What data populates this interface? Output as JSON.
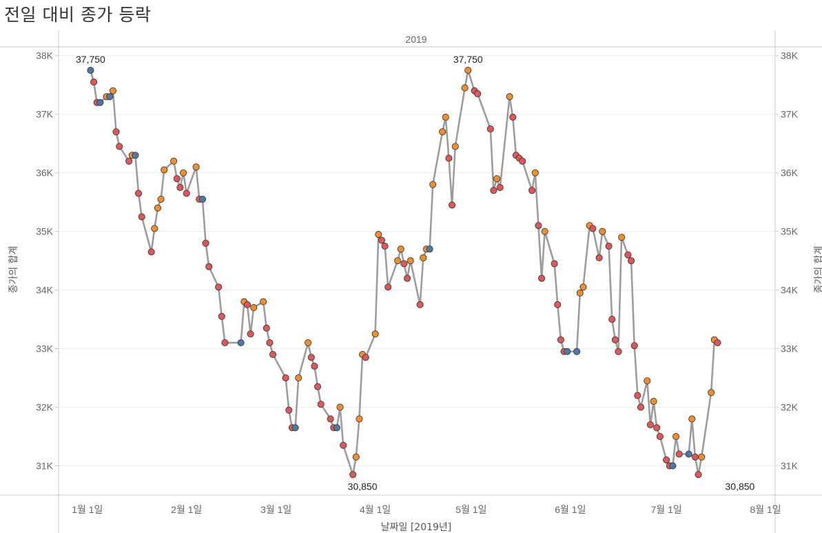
{
  "title": "전일 대비 종가 등락",
  "colors": {
    "up": "#f28e2b",
    "down": "#e15759",
    "flat": "#4e79a7",
    "line": "#9c9c9c",
    "grid": "#ececec",
    "axis": "#c8c8c8"
  },
  "chart_data": {
    "type": "line",
    "panel_header": "2019",
    "xlabel": "날짜일 [2019년]",
    "ylabel": "종가의 합계",
    "ylabel_right": "종가의 합계",
    "x_range": [
      "2018-12-23",
      "2019-08-04"
    ],
    "ylim": [
      30500,
      38150
    ],
    "y_ticks": [
      31000,
      32000,
      33000,
      34000,
      35000,
      36000,
      37000,
      38000
    ],
    "y_tick_labels": [
      "31K",
      "32K",
      "33K",
      "34K",
      "35K",
      "36K",
      "37K",
      "38K"
    ],
    "x_ticks": [
      "2019-01-01",
      "2019-02-01",
      "2019-03-01",
      "2019-04-01",
      "2019-05-01",
      "2019-06-01",
      "2019-07-01",
      "2019-08-01"
    ],
    "x_tick_labels": [
      "1월 1일",
      "2월 1일",
      "3월 1일",
      "4월 1일",
      "5월 1일",
      "6월 1일",
      "7월 1일",
      "8월 1일"
    ],
    "grid": "horizontal",
    "legend": "none",
    "point_color_rule": "up = close higher than previous day, down = lower, flat = unchanged",
    "annotations": [
      {
        "date": "2019-01-02",
        "value": 37750,
        "label": "37,750"
      },
      {
        "date": "2019-04-30",
        "value": 37750,
        "label": "37,750"
      },
      {
        "date": "2019-03-28",
        "value": 30850,
        "label": "30,850"
      },
      {
        "date": "2019-07-24",
        "value": 30850,
        "label": "30,850"
      }
    ],
    "points": [
      {
        "date": "2019-01-02",
        "value": 37750,
        "change": "flat"
      },
      {
        "date": "2019-01-03",
        "value": 37550,
        "change": "down"
      },
      {
        "date": "2019-01-04",
        "value": 37200,
        "change": "down"
      },
      {
        "date": "2019-01-05",
        "value": 37200,
        "change": "flat"
      },
      {
        "date": "2019-01-07",
        "value": 37300,
        "change": "up"
      },
      {
        "date": "2019-01-08",
        "value": 37300,
        "change": "flat"
      },
      {
        "date": "2019-01-09",
        "value": 37400,
        "change": "up"
      },
      {
        "date": "2019-01-10",
        "value": 36700,
        "change": "down"
      },
      {
        "date": "2019-01-11",
        "value": 36450,
        "change": "down"
      },
      {
        "date": "2019-01-14",
        "value": 36200,
        "change": "down"
      },
      {
        "date": "2019-01-15",
        "value": 36300,
        "change": "up"
      },
      {
        "date": "2019-01-16",
        "value": 36300,
        "change": "flat"
      },
      {
        "date": "2019-01-17",
        "value": 35650,
        "change": "down"
      },
      {
        "date": "2019-01-18",
        "value": 35250,
        "change": "down"
      },
      {
        "date": "2019-01-21",
        "value": 34650,
        "change": "down"
      },
      {
        "date": "2019-01-22",
        "value": 35050,
        "change": "up"
      },
      {
        "date": "2019-01-23",
        "value": 35400,
        "change": "up"
      },
      {
        "date": "2019-01-24",
        "value": 35550,
        "change": "up"
      },
      {
        "date": "2019-01-25",
        "value": 36050,
        "change": "up"
      },
      {
        "date": "2019-01-28",
        "value": 36200,
        "change": "up"
      },
      {
        "date": "2019-01-29",
        "value": 35900,
        "change": "down"
      },
      {
        "date": "2019-01-30",
        "value": 35750,
        "change": "down"
      },
      {
        "date": "2019-01-31",
        "value": 36000,
        "change": "up"
      },
      {
        "date": "2019-02-01",
        "value": 35650,
        "change": "down"
      },
      {
        "date": "2019-02-04",
        "value": 36100,
        "change": "up"
      },
      {
        "date": "2019-02-05",
        "value": 35550,
        "change": "down"
      },
      {
        "date": "2019-02-06",
        "value": 35550,
        "change": "flat"
      },
      {
        "date": "2019-02-07",
        "value": 34800,
        "change": "down"
      },
      {
        "date": "2019-02-08",
        "value": 34400,
        "change": "down"
      },
      {
        "date": "2019-02-11",
        "value": 34050,
        "change": "down"
      },
      {
        "date": "2019-02-12",
        "value": 33550,
        "change": "down"
      },
      {
        "date": "2019-02-13",
        "value": 33100,
        "change": "down"
      },
      {
        "date": "2019-02-18",
        "value": 33100,
        "change": "flat"
      },
      {
        "date": "2019-02-19",
        "value": 33800,
        "change": "up"
      },
      {
        "date": "2019-02-20",
        "value": 33750,
        "change": "down"
      },
      {
        "date": "2019-02-21",
        "value": 33250,
        "change": "down"
      },
      {
        "date": "2019-02-22",
        "value": 33700,
        "change": "up"
      },
      {
        "date": "2019-02-25",
        "value": 33800,
        "change": "up"
      },
      {
        "date": "2019-02-26",
        "value": 33350,
        "change": "down"
      },
      {
        "date": "2019-02-27",
        "value": 33100,
        "change": "down"
      },
      {
        "date": "2019-02-28",
        "value": 32900,
        "change": "down"
      },
      {
        "date": "2019-03-04",
        "value": 32500,
        "change": "down"
      },
      {
        "date": "2019-03-05",
        "value": 31950,
        "change": "down"
      },
      {
        "date": "2019-03-06",
        "value": 31650,
        "change": "down"
      },
      {
        "date": "2019-03-07",
        "value": 31650,
        "change": "flat"
      },
      {
        "date": "2019-03-08",
        "value": 32500,
        "change": "up"
      },
      {
        "date": "2019-03-11",
        "value": 33100,
        "change": "up"
      },
      {
        "date": "2019-03-12",
        "value": 32850,
        "change": "down"
      },
      {
        "date": "2019-03-13",
        "value": 32700,
        "change": "down"
      },
      {
        "date": "2019-03-14",
        "value": 32350,
        "change": "down"
      },
      {
        "date": "2019-03-15",
        "value": 32050,
        "change": "down"
      },
      {
        "date": "2019-03-18",
        "value": 31800,
        "change": "down"
      },
      {
        "date": "2019-03-19",
        "value": 31650,
        "change": "down"
      },
      {
        "date": "2019-03-20",
        "value": 31650,
        "change": "flat"
      },
      {
        "date": "2019-03-21",
        "value": 32000,
        "change": "up"
      },
      {
        "date": "2019-03-22",
        "value": 31350,
        "change": "down"
      },
      {
        "date": "2019-03-25",
        "value": 30850,
        "change": "down"
      },
      {
        "date": "2019-03-26",
        "value": 31150,
        "change": "up"
      },
      {
        "date": "2019-03-27",
        "value": 31800,
        "change": "up"
      },
      {
        "date": "2019-03-28",
        "value": 32900,
        "change": "up"
      },
      {
        "date": "2019-03-29",
        "value": 32850,
        "change": "down"
      },
      {
        "date": "2019-04-01",
        "value": 33250,
        "change": "up"
      },
      {
        "date": "2019-04-02",
        "value": 34950,
        "change": "up"
      },
      {
        "date": "2019-04-03",
        "value": 34850,
        "change": "down"
      },
      {
        "date": "2019-04-04",
        "value": 34750,
        "change": "down"
      },
      {
        "date": "2019-04-05",
        "value": 34050,
        "change": "down"
      },
      {
        "date": "2019-04-08",
        "value": 34500,
        "change": "up"
      },
      {
        "date": "2019-04-09",
        "value": 34700,
        "change": "up"
      },
      {
        "date": "2019-04-10",
        "value": 34450,
        "change": "down"
      },
      {
        "date": "2019-04-11",
        "value": 34200,
        "change": "down"
      },
      {
        "date": "2019-04-12",
        "value": 34500,
        "change": "up"
      },
      {
        "date": "2019-04-15",
        "value": 33750,
        "change": "down"
      },
      {
        "date": "2019-04-16",
        "value": 34550,
        "change": "up"
      },
      {
        "date": "2019-04-17",
        "value": 34700,
        "change": "up"
      },
      {
        "date": "2019-04-18",
        "value": 34700,
        "change": "flat"
      },
      {
        "date": "2019-04-19",
        "value": 35800,
        "change": "up"
      },
      {
        "date": "2019-04-22",
        "value": 36700,
        "change": "up"
      },
      {
        "date": "2019-04-23",
        "value": 36950,
        "change": "up"
      },
      {
        "date": "2019-04-24",
        "value": 36250,
        "change": "down"
      },
      {
        "date": "2019-04-25",
        "value": 35450,
        "change": "down"
      },
      {
        "date": "2019-04-26",
        "value": 36450,
        "change": "up"
      },
      {
        "date": "2019-04-29",
        "value": 37450,
        "change": "up"
      },
      {
        "date": "2019-04-30",
        "value": 37750,
        "change": "up"
      },
      {
        "date": "2019-05-02",
        "value": 37400,
        "change": "down"
      },
      {
        "date": "2019-05-03",
        "value": 37350,
        "change": "down"
      },
      {
        "date": "2019-05-07",
        "value": 36750,
        "change": "down"
      },
      {
        "date": "2019-05-08",
        "value": 35700,
        "change": "down"
      },
      {
        "date": "2019-05-09",
        "value": 35900,
        "change": "up"
      },
      {
        "date": "2019-05-10",
        "value": 35750,
        "change": "down"
      },
      {
        "date": "2019-05-13",
        "value": 37300,
        "change": "up"
      },
      {
        "date": "2019-05-14",
        "value": 36950,
        "change": "down"
      },
      {
        "date": "2019-05-15",
        "value": 36300,
        "change": "down"
      },
      {
        "date": "2019-05-16",
        "value": 36250,
        "change": "down"
      },
      {
        "date": "2019-05-17",
        "value": 36200,
        "change": "down"
      },
      {
        "date": "2019-05-20",
        "value": 35700,
        "change": "down"
      },
      {
        "date": "2019-05-21",
        "value": 36000,
        "change": "up"
      },
      {
        "date": "2019-05-22",
        "value": 35100,
        "change": "down"
      },
      {
        "date": "2019-05-23",
        "value": 34200,
        "change": "down"
      },
      {
        "date": "2019-05-24",
        "value": 35000,
        "change": "up"
      },
      {
        "date": "2019-05-27",
        "value": 34450,
        "change": "down"
      },
      {
        "date": "2019-05-28",
        "value": 33750,
        "change": "down"
      },
      {
        "date": "2019-05-29",
        "value": 33150,
        "change": "down"
      },
      {
        "date": "2019-05-30",
        "value": 32950,
        "change": "down"
      },
      {
        "date": "2019-05-31",
        "value": 32950,
        "change": "flat"
      },
      {
        "date": "2019-06-03",
        "value": 32950,
        "change": "flat"
      },
      {
        "date": "2019-06-04",
        "value": 33950,
        "change": "up"
      },
      {
        "date": "2019-06-05",
        "value": 34050,
        "change": "up"
      },
      {
        "date": "2019-06-07",
        "value": 35100,
        "change": "up"
      },
      {
        "date": "2019-06-08",
        "value": 35050,
        "change": "down"
      },
      {
        "date": "2019-06-10",
        "value": 34550,
        "change": "down"
      },
      {
        "date": "2019-06-11",
        "value": 35000,
        "change": "up"
      },
      {
        "date": "2019-06-13",
        "value": 34750,
        "change": "down"
      },
      {
        "date": "2019-06-14",
        "value": 33500,
        "change": "down"
      },
      {
        "date": "2019-06-15",
        "value": 33150,
        "change": "down"
      },
      {
        "date": "2019-06-16",
        "value": 32950,
        "change": "down"
      },
      {
        "date": "2019-06-17",
        "value": 34900,
        "change": "up"
      },
      {
        "date": "2019-06-19",
        "value": 34600,
        "change": "down"
      },
      {
        "date": "2019-06-20",
        "value": 34500,
        "change": "down"
      },
      {
        "date": "2019-06-21",
        "value": 33050,
        "change": "down"
      },
      {
        "date": "2019-06-22",
        "value": 32200,
        "change": "down"
      },
      {
        "date": "2019-06-23",
        "value": 32000,
        "change": "down"
      },
      {
        "date": "2019-06-25",
        "value": 32450,
        "change": "up"
      },
      {
        "date": "2019-06-26",
        "value": 31700,
        "change": "down"
      },
      {
        "date": "2019-06-27",
        "value": 32100,
        "change": "up"
      },
      {
        "date": "2019-06-28",
        "value": 31650,
        "change": "down"
      },
      {
        "date": "2019-06-29",
        "value": 31500,
        "change": "down"
      },
      {
        "date": "2019-07-01",
        "value": 31100,
        "change": "down"
      },
      {
        "date": "2019-07-02",
        "value": 31000,
        "change": "down"
      },
      {
        "date": "2019-07-03",
        "value": 31000,
        "change": "flat"
      },
      {
        "date": "2019-07-04",
        "value": 31500,
        "change": "up"
      },
      {
        "date": "2019-07-05",
        "value": 31200,
        "change": "down"
      },
      {
        "date": "2019-07-08",
        "value": 31200,
        "change": "flat"
      },
      {
        "date": "2019-07-09",
        "value": 31800,
        "change": "up"
      },
      {
        "date": "2019-07-10",
        "value": 31150,
        "change": "down"
      },
      {
        "date": "2019-07-11",
        "value": 30850,
        "change": "down"
      },
      {
        "date": "2019-07-12",
        "value": 31150,
        "change": "up"
      },
      {
        "date": "2019-07-15",
        "value": 32250,
        "change": "up"
      },
      {
        "date": "2019-07-16",
        "value": 33150,
        "change": "up"
      },
      {
        "date": "2019-07-17",
        "value": 33100,
        "change": "down"
      }
    ]
  }
}
